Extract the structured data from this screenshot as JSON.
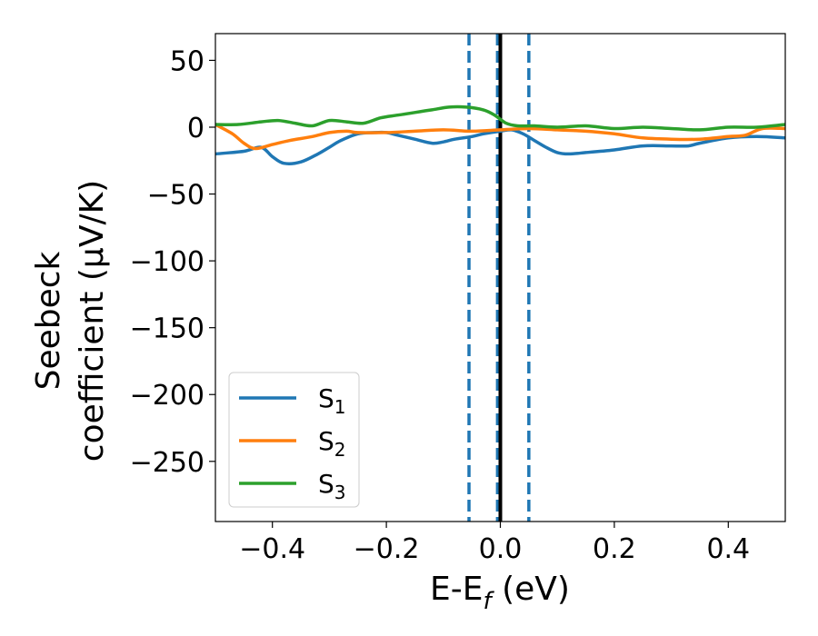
{
  "chart_data": {
    "type": "line",
    "title": "",
    "xlabel": "E-E_f (eV)",
    "xlabel_parts": [
      "E-E",
      "f",
      " (eV)"
    ],
    "ylabel_lines": [
      "Seebeck",
      "coefficient  (μV/K)"
    ],
    "xlim": [
      -0.5,
      0.5
    ],
    "ylim": [
      -295,
      70
    ],
    "xticks": [
      -0.4,
      -0.2,
      0.0,
      0.2,
      0.4
    ],
    "xtick_labels": [
      "−0.4",
      "−0.2",
      "0.0",
      "0.2",
      "0.4"
    ],
    "yticks": [
      50,
      0,
      -50,
      -100,
      -150,
      -200,
      -250
    ],
    "ytick_labels": [
      "50",
      "0",
      "−50",
      "−100",
      "−150",
      "−200",
      "−250"
    ],
    "grid": false,
    "legend": {
      "placement": "lower-left"
    },
    "vlines": [
      {
        "x": -0.055,
        "style": "dashed",
        "color": "#1f77b4"
      },
      {
        "x": -0.005,
        "style": "dashed",
        "color": "#1f77b4"
      },
      {
        "x": 0.0,
        "style": "solid",
        "color": "#000000"
      },
      {
        "x": 0.05,
        "style": "dashed",
        "color": "#1f77b4"
      }
    ],
    "series": [
      {
        "name": "S1",
        "base": "S",
        "sub": "1",
        "color": "#1f77b4",
        "x": [
          -0.5,
          -0.45,
          -0.42,
          -0.4,
          -0.38,
          -0.35,
          -0.32,
          -0.3,
          -0.28,
          -0.25,
          -0.22,
          -0.2,
          -0.18,
          -0.15,
          -0.12,
          -0.1,
          -0.08,
          -0.05,
          -0.03,
          0.0,
          0.02,
          0.04,
          0.06,
          0.08,
          0.1,
          0.12,
          0.15,
          0.2,
          0.25,
          0.3,
          0.33,
          0.35,
          0.4,
          0.45,
          0.5
        ],
        "y": [
          -20,
          -18,
          -15,
          -22,
          -27,
          -26,
          -20,
          -15,
          -10,
          -5,
          -4,
          -4,
          -6,
          -9,
          -12,
          -11,
          -9,
          -7,
          -5,
          -3,
          -2,
          -5,
          -10,
          -15,
          -19,
          -20,
          -19,
          -17,
          -14,
          -14,
          -14,
          -12,
          -8,
          -7,
          -8
        ]
      },
      {
        "name": "S2",
        "base": "S",
        "sub": "2",
        "color": "#ff7f0e",
        "x": [
          -0.5,
          -0.47,
          -0.45,
          -0.43,
          -0.4,
          -0.37,
          -0.33,
          -0.3,
          -0.27,
          -0.25,
          -0.2,
          -0.15,
          -0.1,
          -0.05,
          0.0,
          0.05,
          0.1,
          0.15,
          0.2,
          0.25,
          0.3,
          0.35,
          0.4,
          0.43,
          0.46,
          0.5
        ],
        "y": [
          2,
          -5,
          -12,
          -16,
          -13,
          -10,
          -7,
          -4,
          -3,
          -4,
          -4,
          -3,
          -2,
          -3,
          -2,
          -1,
          -2,
          -3,
          -5,
          -8,
          -9,
          -9,
          -7,
          -6,
          -1,
          -1
        ]
      },
      {
        "name": "S3",
        "base": "S",
        "sub": "3",
        "color": "#2ca02c",
        "x": [
          -0.5,
          -0.46,
          -0.42,
          -0.39,
          -0.36,
          -0.33,
          -0.3,
          -0.27,
          -0.24,
          -0.21,
          -0.18,
          -0.15,
          -0.12,
          -0.09,
          -0.06,
          -0.03,
          -0.01,
          0.01,
          0.03,
          0.06,
          0.1,
          0.15,
          0.2,
          0.25,
          0.3,
          0.35,
          0.4,
          0.45,
          0.5
        ],
        "y": [
          2,
          2,
          4,
          5,
          3,
          1,
          5,
          4,
          3,
          7,
          9,
          11,
          13,
          15,
          15,
          13,
          9,
          3,
          1,
          1,
          0,
          1,
          -1,
          0,
          -1,
          -2,
          0,
          0,
          2
        ]
      }
    ]
  }
}
